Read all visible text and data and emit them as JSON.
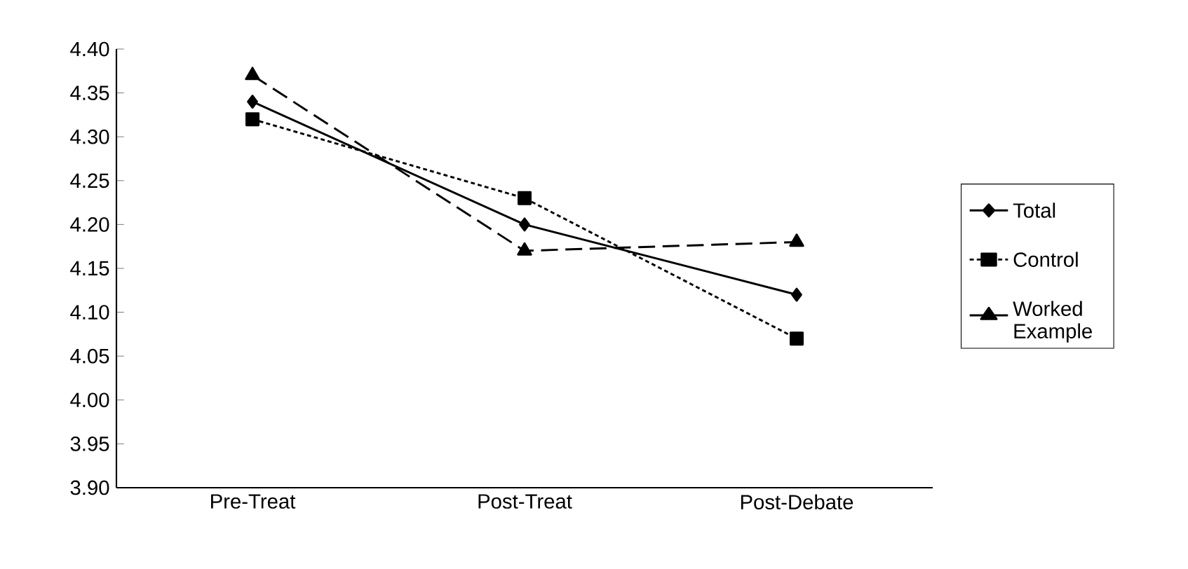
{
  "chart_data": {
    "type": "line",
    "categories": [
      "Pre-Treat",
      "Post-Treat",
      "Post-Debate"
    ],
    "series": [
      {
        "name": "Total",
        "color": "#000000",
        "values": [
          4.34,
          4.2,
          4.12
        ],
        "marker": "diamond",
        "line_style": "solid"
      },
      {
        "name": "Control",
        "color": "#000000",
        "values": [
          4.32,
          4.23,
          4.07
        ],
        "marker": "square",
        "line_style": "dotted"
      },
      {
        "name": "Worked Example",
        "color": "#000000",
        "values": [
          4.37,
          4.17,
          4.18
        ],
        "marker": "triangle",
        "line_style": "dashed"
      }
    ],
    "ylim": [
      3.9,
      4.4
    ],
    "yticks": [
      {
        "value": 3.9,
        "label": "3.90"
      },
      {
        "value": 3.95,
        "label": "3.95"
      },
      {
        "value": 4.0,
        "label": "4.00"
      },
      {
        "value": 4.05,
        "label": "4.05"
      },
      {
        "value": 4.1,
        "label": "4.10"
      },
      {
        "value": 4.15,
        "label": "4.15"
      },
      {
        "value": 4.2,
        "label": "4.20"
      },
      {
        "value": 4.25,
        "label": "4.25"
      },
      {
        "value": 4.3,
        "label": "4.30"
      },
      {
        "value": 4.35,
        "label": "4.35"
      },
      {
        "value": 4.4,
        "label": "4.40"
      }
    ],
    "grid": false,
    "legend": "right"
  }
}
